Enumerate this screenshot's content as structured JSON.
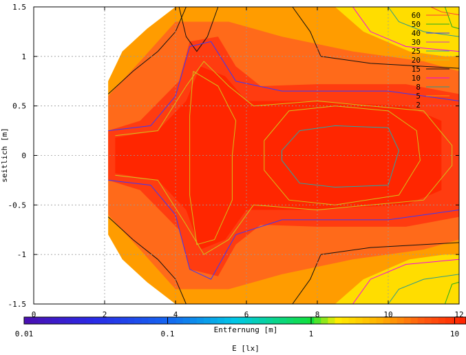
{
  "chart_data": {
    "type": "heatmap",
    "title": "",
    "xlabel": "Entfernung [m]",
    "ylabel": "seitlich [m]",
    "xlim": [
      0,
      12
    ],
    "ylim": [
      -1.5,
      1.5
    ],
    "x_ticks": [
      "0",
      "2",
      "4",
      "6",
      "8",
      "10",
      "12"
    ],
    "y_ticks": [
      "-1.5",
      "-1",
      "-0.5",
      "0",
      "0.5",
      "1",
      "1.5"
    ],
    "grid": true,
    "colorbar": {
      "label": "E [lx]",
      "scale": "log",
      "range": [
        0.01,
        12
      ],
      "ticks": [
        "0.01",
        "0.1",
        "1",
        "10"
      ],
      "stops": [
        {
          "value": 0.01,
          "color": "#4b0fb0"
        },
        {
          "value": 0.03,
          "color": "#2a2ae6"
        },
        {
          "value": 0.1,
          "color": "#1565f0"
        },
        {
          "value": 0.3,
          "color": "#00c8e6"
        },
        {
          "value": 1,
          "color": "#12e03a"
        },
        {
          "value": 1.5,
          "color": "#ffee00"
        },
        {
          "value": 3,
          "color": "#ffb000"
        },
        {
          "value": 6,
          "color": "#ff5a10"
        },
        {
          "value": 12,
          "color": "#ff2000"
        }
      ]
    },
    "contour_levels": [
      {
        "label": "60",
        "value": 60,
        "color": "#ff3a3a"
      },
      {
        "label": "50",
        "value": 50,
        "color": "#1faa1f"
      },
      {
        "label": "40",
        "value": 40,
        "color": "#3838ff"
      },
      {
        "label": "30",
        "value": 30,
        "color": "#cc33cc"
      },
      {
        "label": "25",
        "value": 25,
        "color": "#22aaaa"
      },
      {
        "label": "20",
        "value": 20,
        "color": "#d4c21a"
      },
      {
        "label": "15",
        "value": 15,
        "color": "#111111"
      },
      {
        "label": "10",
        "value": 10,
        "color": "#ee00ee"
      },
      {
        "label": "8",
        "value": 8,
        "color": "#2b9a8f"
      },
      {
        "label": "5",
        "value": 5,
        "color": "#ff9900"
      },
      {
        "label": "2",
        "value": 2,
        "color": "#ff3a3a"
      }
    ],
    "field_colors": {
      "edge": "#ffdd00",
      "low": "#ff9c00",
      "mid": "#ff6a1a",
      "high": "#ff3c10",
      "core": "#ff2600"
    }
  }
}
